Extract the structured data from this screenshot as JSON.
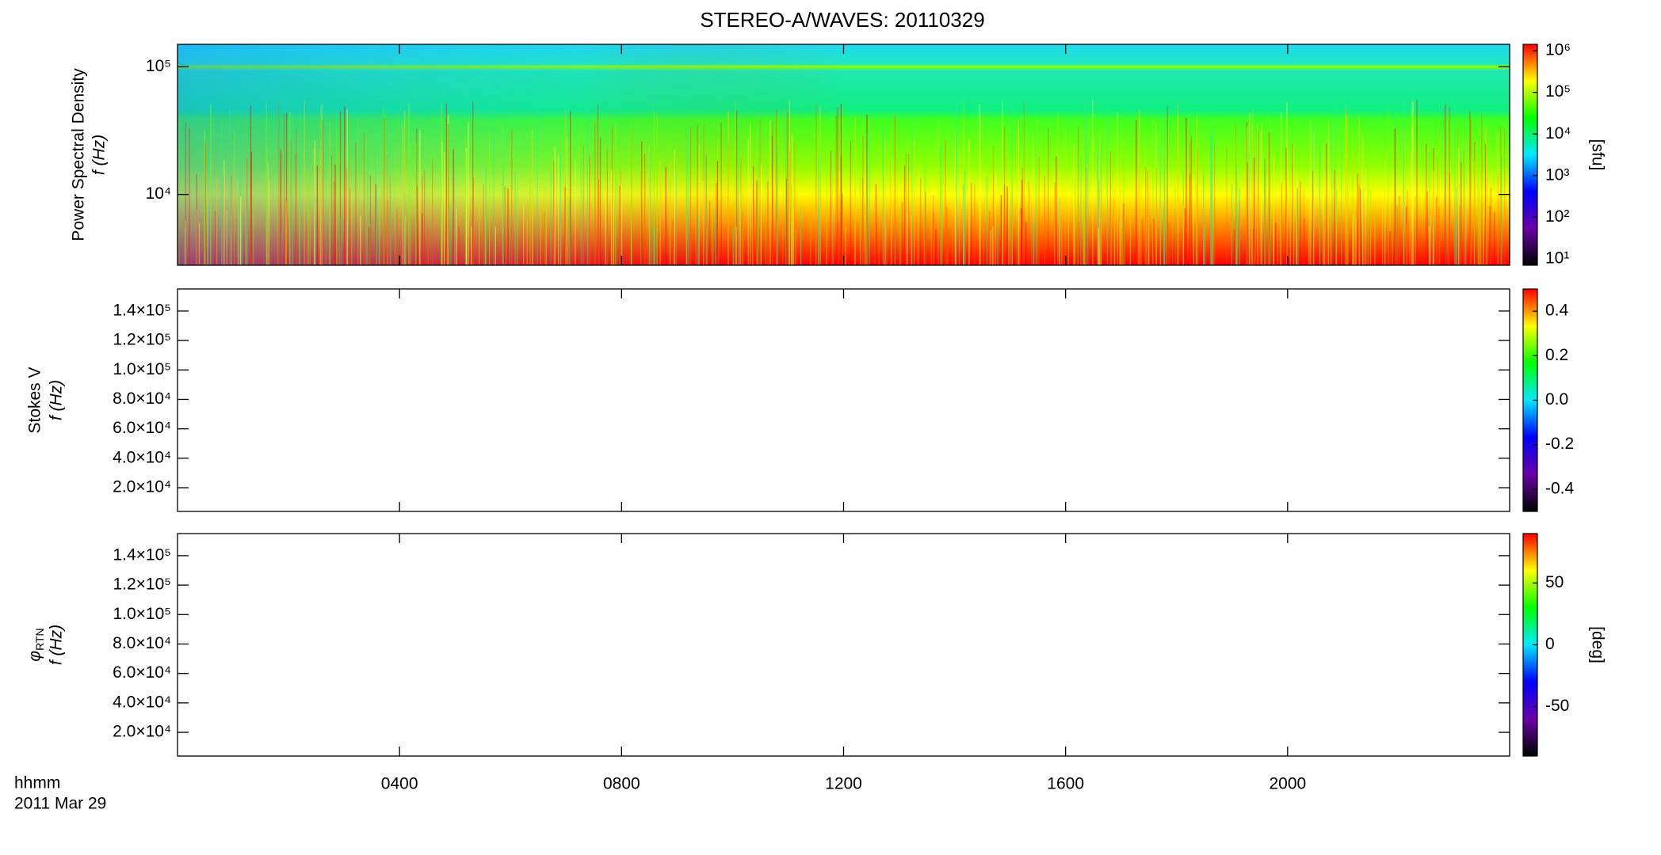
{
  "chart_data": [
    {
      "type": "spectrogram",
      "title": "STEREO-A/WAVES: 20110329",
      "ylabel": "Power Spectral Density",
      "ylabel2": "f (Hz)",
      "ylog": true,
      "ylim": [
        2790,
        150000
      ],
      "yticks": [
        {
          "value": 10000,
          "label": "10⁴"
        },
        {
          "value": 100000,
          "label": "10⁵"
        }
      ],
      "xlim": [
        0,
        24
      ],
      "colorbar": {
        "log": true,
        "lim": [
          7,
          1430000
        ],
        "label": "[sfu]",
        "ticks": [
          {
            "value": 10,
            "label": "10¹"
          },
          {
            "value": 100,
            "label": "10²"
          },
          {
            "value": 1000,
            "label": "10³"
          },
          {
            "value": 10000,
            "label": "10⁴"
          },
          {
            "value": 100000,
            "label": "10⁵"
          },
          {
            "value": 1000000,
            "label": "10⁶"
          }
        ]
      },
      "colormap": [
        "#000000",
        "#6a00a8",
        "#0000ff",
        "#00e8ff",
        "#00ff00",
        "#ffff00",
        "#ff0000"
      ]
    },
    {
      "type": "spectrogram",
      "ylabel": "Stokes V",
      "ylabel2": "f (Hz)",
      "ylog": false,
      "ylim": [
        3900,
        155000
      ],
      "yticks": [
        {
          "value": 20000,
          "label": "2.0×10⁴"
        },
        {
          "value": 40000,
          "label": "4.0×10⁴"
        },
        {
          "value": 60000,
          "label": "6.0×10⁴"
        },
        {
          "value": 80000,
          "label": "8.0×10⁴"
        },
        {
          "value": 100000,
          "label": "1.0×10⁵"
        },
        {
          "value": 120000,
          "label": "1.2×10⁵"
        },
        {
          "value": 140000,
          "label": "1.4×10⁵"
        }
      ],
      "xlim": [
        0,
        24
      ],
      "colorbar": {
        "log": false,
        "lim": [
          -0.5,
          0.5
        ],
        "ticks": [
          -0.4,
          -0.2,
          0.0,
          0.2,
          0.4
        ]
      },
      "colormap": [
        "#000000",
        "#6a00a8",
        "#0000ff",
        "#00e8ff",
        "#00ff00",
        "#ffff00",
        "#ff0000"
      ]
    },
    {
      "type": "spectrogram",
      "ylabel": "φ",
      "ylabel_sub": "RTN",
      "ylabel2": "f (Hz)",
      "ylog": false,
      "ylim": [
        3900,
        155000
      ],
      "yticks": [
        {
          "value": 20000,
          "label": "2.0×10⁴"
        },
        {
          "value": 40000,
          "label": "4.0×10⁴"
        },
        {
          "value": 60000,
          "label": "6.0×10⁴"
        },
        {
          "value": 80000,
          "label": "8.0×10⁴"
        },
        {
          "value": 100000,
          "label": "1.0×10⁵"
        },
        {
          "value": 120000,
          "label": "1.2×10⁵"
        },
        {
          "value": 140000,
          "label": "1.4×10⁵"
        }
      ],
      "xlim": [
        0,
        24
      ],
      "xticks": [
        {
          "value": 4,
          "label": "0400"
        },
        {
          "value": 8,
          "label": "0800"
        },
        {
          "value": 12,
          "label": "1200"
        },
        {
          "value": 16,
          "label": "1600"
        },
        {
          "value": 20,
          "label": "2000"
        }
      ],
      "xlabel": "hhmm",
      "date": "2011 Mar 29",
      "colorbar": {
        "log": false,
        "lim": [
          -90,
          90
        ],
        "label": "[deg]",
        "ticks": [
          -50,
          0,
          50
        ]
      },
      "colormap": [
        "#000000",
        "#6a00a8",
        "#0000ff",
        "#00e8ff",
        "#00ff00",
        "#ffff00",
        "#ff0000"
      ]
    }
  ]
}
